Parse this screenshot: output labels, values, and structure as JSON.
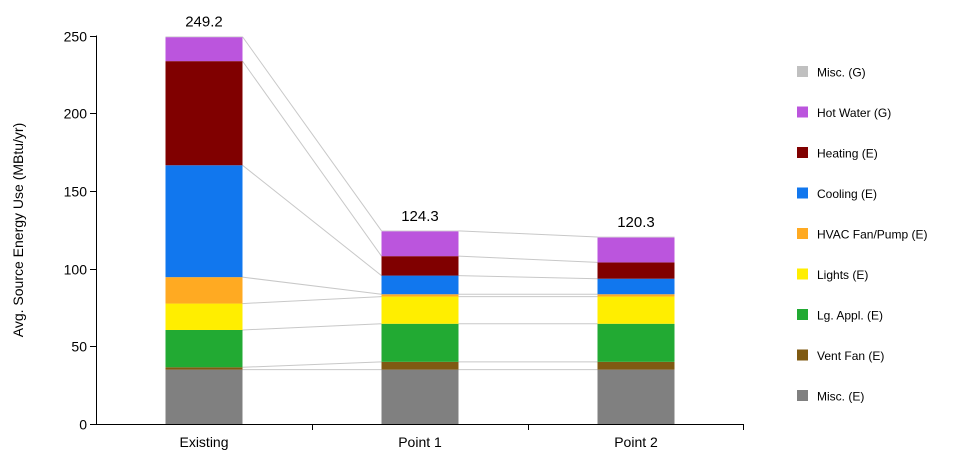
{
  "chart_data": {
    "type": "bar",
    "stacked": true,
    "ylabel": "Avg. Source Energy Use (MBtu/yr)",
    "xlabel": "",
    "ylim": [
      0,
      250
    ],
    "yticks": [
      0,
      50,
      100,
      150,
      200,
      250
    ],
    "categories": [
      "Existing",
      "Point 1",
      "Point 2"
    ],
    "totals": [
      "249.2",
      "124.3",
      "120.3"
    ],
    "legend_position": "right",
    "grid": false,
    "connector_lines": true,
    "series": [
      {
        "name": "Misc. (E)",
        "color": "#808080",
        "values": [
          35,
          35,
          35
        ]
      },
      {
        "name": "Vent Fan (E)",
        "color": "#7f5a12",
        "values": [
          1.5,
          5,
          5
        ]
      },
      {
        "name": "Lg. Appl. (E)",
        "color": "#22aa33",
        "values": [
          24,
          24.5,
          24.5
        ]
      },
      {
        "name": "Lights (E)",
        "color": "#ffee00",
        "values": [
          17,
          17.5,
          17.5
        ]
      },
      {
        "name": "HVAC Fan/Pump (E)",
        "color": "#ffaa22",
        "values": [
          17,
          1.5,
          1.5
        ]
      },
      {
        "name": "Cooling (E)",
        "color": "#1177ee",
        "values": [
          72,
          12,
          10
        ]
      },
      {
        "name": "Heating (E)",
        "color": "#800000",
        "values": [
          67,
          12.5,
          10.5
        ]
      },
      {
        "name": "Hot Water (G)",
        "color": "#bb55dd",
        "values": [
          15.7,
          16.3,
          16.3
        ]
      },
      {
        "name": "Misc. (G)",
        "color": "#c0c0c0",
        "values": [
          0,
          0,
          0
        ]
      }
    ],
    "legend_order": [
      "Misc. (G)",
      "Hot Water (G)",
      "Heating (E)",
      "Cooling (E)",
      "HVAC Fan/Pump (E)",
      "Lights (E)",
      "Lg. Appl. (E)",
      "Vent Fan (E)",
      "Misc. (E)"
    ]
  }
}
